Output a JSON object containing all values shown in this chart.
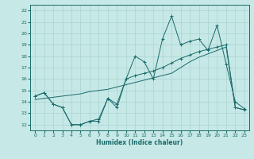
{
  "xlabel": "Humidex (Indice chaleur)",
  "xlim": [
    -0.5,
    23.5
  ],
  "ylim": [
    11.5,
    22.5
  ],
  "yticks": [
    12,
    13,
    14,
    15,
    16,
    17,
    18,
    19,
    20,
    21,
    22
  ],
  "xticks": [
    0,
    1,
    2,
    3,
    4,
    5,
    6,
    7,
    8,
    9,
    10,
    11,
    12,
    13,
    14,
    15,
    16,
    17,
    18,
    19,
    20,
    21,
    22,
    23
  ],
  "bg_color": "#c6e8e6",
  "line_color": "#1a6b6b",
  "grid_color": "#a8d4d0",
  "hours": [
    0,
    1,
    2,
    3,
    4,
    5,
    6,
    7,
    8,
    9,
    10,
    11,
    12,
    13,
    14,
    15,
    16,
    17,
    18,
    19,
    20,
    21,
    22,
    23
  ],
  "line_jagged": [
    14.5,
    14.8,
    13.8,
    13.5,
    12.0,
    12.0,
    12.3,
    12.3,
    14.3,
    13.5,
    16.0,
    18.0,
    17.5,
    16.0,
    19.5,
    21.5,
    19.0,
    19.3,
    19.5,
    18.5,
    20.7,
    17.3,
    14.0,
    13.4
  ],
  "line_smooth": [
    14.5,
    14.8,
    13.8,
    13.5,
    12.0,
    12.0,
    12.3,
    12.5,
    14.3,
    13.8,
    16.0,
    16.3,
    16.5,
    16.7,
    17.0,
    17.4,
    17.8,
    18.1,
    18.4,
    18.6,
    18.8,
    19.0,
    13.5,
    13.3
  ],
  "line_trend": [
    14.2,
    14.3,
    14.4,
    14.5,
    14.6,
    14.7,
    14.9,
    15.0,
    15.1,
    15.3,
    15.5,
    15.7,
    15.9,
    16.1,
    16.3,
    16.5,
    17.0,
    17.5,
    17.9,
    18.2,
    18.5,
    18.8,
    13.5,
    13.3
  ]
}
